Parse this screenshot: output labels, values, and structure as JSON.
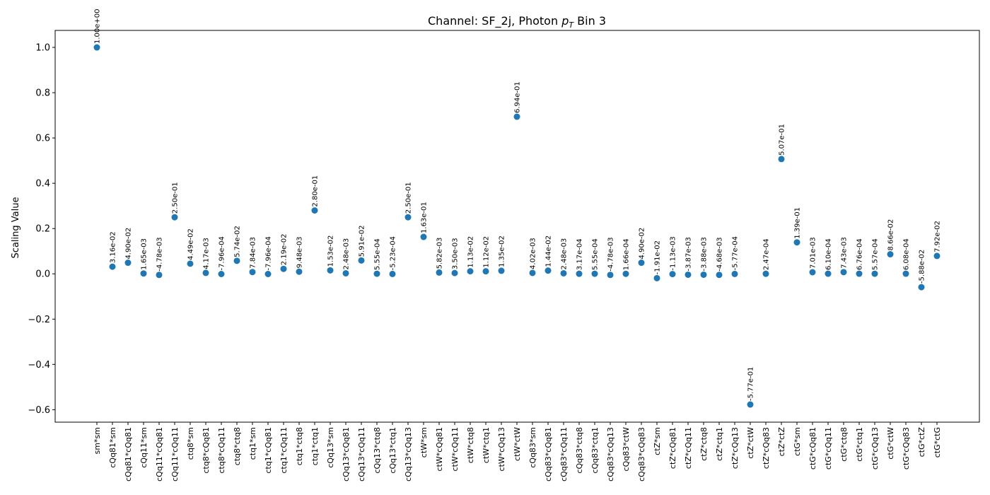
{
  "chart_data": {
    "type": "scatter",
    "title_prefix": "Channel: SF_2j, Photon ",
    "title_math": "p",
    "title_sub": "T",
    "title_suffix": " Bin 3",
    "xlabel": "",
    "ylabel": "Scaling Value",
    "ylim": [
      -0.655,
      1.075
    ],
    "yticks": [
      -0.6,
      -0.4,
      -0.2,
      0.0,
      0.2,
      0.4,
      0.6,
      0.8,
      1.0
    ],
    "ytick_labels": [
      "−0.6",
      "−0.4",
      "−0.2",
      "0.0",
      "0.2",
      "0.4",
      "0.6",
      "0.8",
      "1.0"
    ],
    "grid": false,
    "marker_color": "#1f77b4",
    "categories": [
      "sm*sm",
      "cQq81*sm",
      "cQq81*cQq81",
      "cQq11*sm",
      "cQq11*cQq81",
      "cQq11*cQq11",
      "ctq8*sm",
      "ctq8*cQq81",
      "ctq8*cQq11",
      "ctq8*ctq8",
      "ctq1*sm",
      "ctq1*cQq81",
      "ctq1*cQq11",
      "ctq1*ctq8",
      "ctq1*ctq1",
      "cQq13*sm",
      "cQq13*cQq81",
      "cQq13*cQq11",
      "cQq13*ctq8",
      "cQq13*ctq1",
      "cQq13*cQq13",
      "ctW*sm",
      "ctW*cQq81",
      "ctW*cQq11",
      "ctW*ctq8",
      "ctW*ctq1",
      "ctW*cQq13",
      "ctW*ctW",
      "cQq83*sm",
      "cQq83*cQq81",
      "cQq83*cQq11",
      "cQq83*ctq8",
      "cQq83*ctq1",
      "cQq83*cQq13",
      "cQq83*ctW",
      "cQq83*cQq83",
      "ctZ*sm",
      "ctZ*cQq81",
      "ctZ*cQq11",
      "ctZ*ctq8",
      "ctZ*ctq1",
      "ctZ*cQq13",
      "ctZ*ctW",
      "ctZ*cQq83",
      "ctZ*ctZ",
      "ctG*sm",
      "ctG*cQq81",
      "ctG*cQq11",
      "ctG*ctq8",
      "ctG*ctq1",
      "ctG*cQq13",
      "ctG*ctW",
      "ctG*cQq83",
      "ctG*ctZ",
      "ctG*ctG"
    ],
    "values": [
      1.0,
      0.0316,
      0.049,
      0.00165,
      -0.00478,
      0.25,
      0.0449,
      0.00417,
      -0.000796,
      0.0574,
      0.00784,
      -0.000796,
      0.0219,
      0.00948,
      0.28,
      0.0153,
      0.00248,
      0.0591,
      0.000555,
      -0.000523,
      0.25,
      0.163,
      0.00582,
      0.0035,
      0.0113,
      0.0112,
      0.0135,
      0.694,
      0.00402,
      0.0144,
      0.00248,
      0.000317,
      0.000555,
      -0.00478,
      0.000166,
      0.049,
      -0.0191,
      -0.00113,
      -0.00387,
      -0.00388,
      -0.00468,
      -0.000577,
      -0.577,
      0.000247,
      0.507,
      0.139,
      0.00701,
      0.00061,
      0.00743,
      0.000676,
      0.000557,
      0.0866,
      0.000608,
      -0.0588,
      0.0792
    ],
    "labels": [
      "1.00e+00",
      "3.16e-02",
      "4.90e-02",
      "1.65e-03",
      "-4.78e-03",
      "2.50e-01",
      "4.49e-02",
      "4.17e-03",
      "-7.96e-04",
      "5.74e-02",
      "7.84e-03",
      "-7.96e-04",
      "2.19e-02",
      "9.48e-03",
      "2.80e-01",
      "1.53e-02",
      "2.48e-03",
      "5.91e-02",
      "5.55e-04",
      "-5.23e-04",
      "2.50e-01",
      "1.63e-01",
      "5.82e-03",
      "3.50e-03",
      "1.13e-02",
      "1.12e-02",
      "1.35e-02",
      "6.94e-01",
      "4.02e-03",
      "1.44e-02",
      "2.48e-03",
      "3.17e-04",
      "5.55e-04",
      "-4.78e-03",
      "1.66e-04",
      "4.90e-02",
      "-1.91e-02",
      "-1.13e-03",
      "-3.87e-03",
      "-3.88e-03",
      "-4.68e-03",
      "-5.77e-04",
      "-5.77e-01",
      "2.47e-04",
      "5.07e-01",
      "1.39e-01",
      "7.01e-03",
      "6.10e-04",
      "7.43e-03",
      "6.76e-04",
      "5.57e-04",
      "8.66e-02",
      "6.08e-04",
      "-5.88e-02",
      "7.92e-02"
    ]
  }
}
